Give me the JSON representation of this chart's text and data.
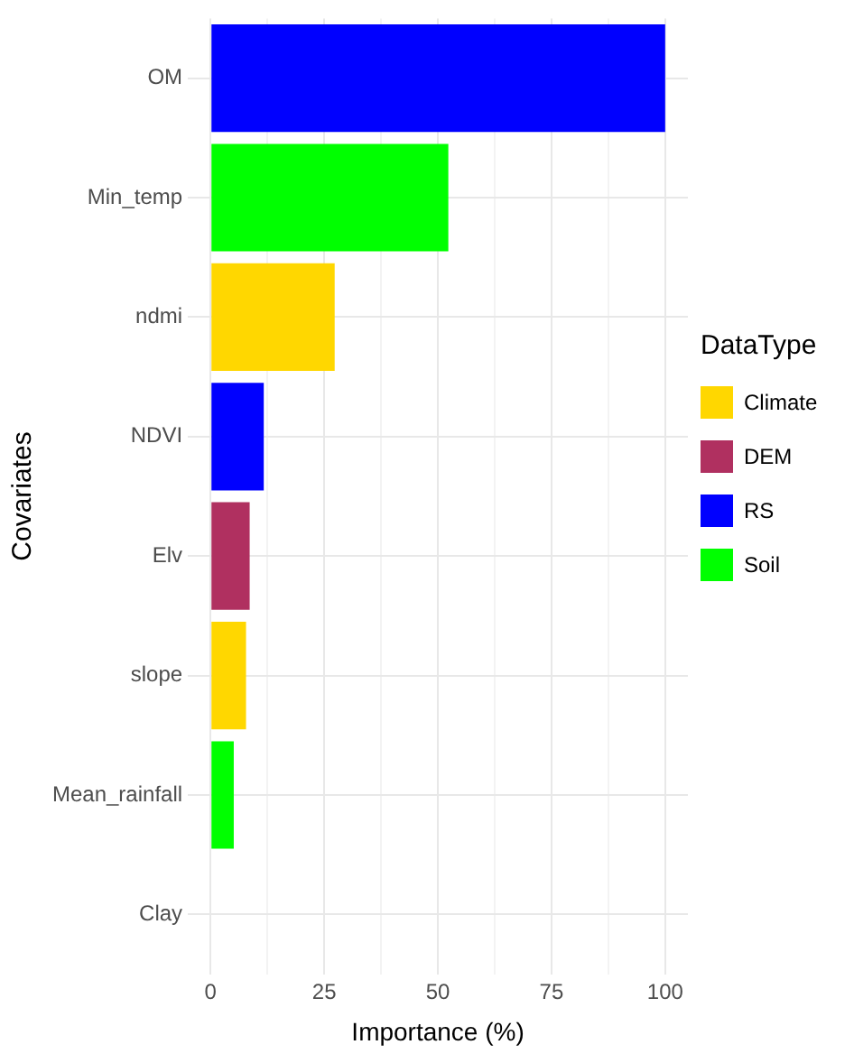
{
  "chart_data": {
    "type": "bar",
    "orientation": "horizontal",
    "xlabel": "Importance (%)",
    "ylabel": "Covariates",
    "legend_title": "DataType",
    "legend": "right",
    "grid": true,
    "categories": [
      "OM",
      "Min_temp",
      "ndmi",
      "NDVI",
      "Elv",
      "slope",
      "Mean_rainfall",
      "Clay"
    ],
    "series": [
      {
        "name": "Climate",
        "color": "#ffd700",
        "values": [
          null,
          null,
          27.3,
          null,
          null,
          7.8,
          null,
          null
        ]
      },
      {
        "name": "DEM",
        "color": "#b03060",
        "values": [
          null,
          null,
          null,
          null,
          8.6,
          null,
          null,
          null
        ]
      },
      {
        "name": "RS",
        "color": "#0000ff",
        "values": [
          100,
          null,
          null,
          11.7,
          null,
          null,
          null,
          null
        ]
      },
      {
        "name": "Soil",
        "color": "#00ff00",
        "values": [
          null,
          52.3,
          null,
          null,
          null,
          null,
          5.1,
          0
        ]
      }
    ],
    "xlim": [
      -5,
      105
    ],
    "xticks": [
      0,
      {
        "value": 12.5,
        "label": null
      },
      25,
      {
        "value": 37.5,
        "label": null
      },
      50,
      {
        "value": 62.5,
        "label": null
      },
      75,
      {
        "value": 87.5,
        "label": null
      },
      100
    ]
  }
}
